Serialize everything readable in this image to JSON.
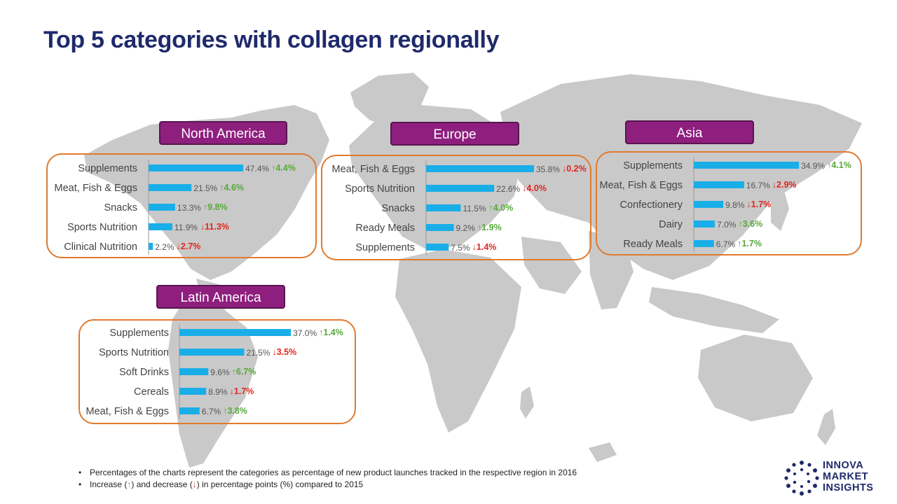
{
  "title": "Top 5 categories with collagen regionally",
  "colors": {
    "bar": "#1aaee8",
    "up": "#58a83c",
    "down": "#e0261f",
    "pill": "#8e1f7e",
    "panel_border": "#e07a2f",
    "title": "#1f2a6b",
    "map": "#c9c9c9"
  },
  "chart_data": [
    {
      "type": "bar",
      "orientation": "horizontal",
      "title": "North America",
      "xlim": [
        0,
        50
      ],
      "categories": [
        "Supplements",
        "Meat, Fish & Eggs",
        "Snacks",
        "Sports Nutrition",
        "Clinical Nutrition"
      ],
      "values": [
        47.4,
        21.5,
        13.3,
        11.9,
        2.2
      ],
      "value_labels": [
        "47.4%",
        "21.5%",
        "13.3%",
        "11.9%",
        "2.2%"
      ],
      "changes": [
        {
          "direction": "up",
          "arrow": "↑",
          "label": "4.4%"
        },
        {
          "direction": "up",
          "arrow": "↑",
          "label": "4.6%"
        },
        {
          "direction": "up",
          "arrow": "↑",
          "label": "9.8%"
        },
        {
          "direction": "down",
          "arrow": "↓",
          "label": "11.3%"
        },
        {
          "direction": "down",
          "arrow": "↓",
          "label": "2.7%"
        }
      ]
    },
    {
      "type": "bar",
      "orientation": "horizontal",
      "title": "Europe",
      "xlim": [
        0,
        50
      ],
      "categories": [
        "Meat, Fish & Eggs",
        "Sports Nutrition",
        "Snacks",
        "Ready Meals",
        "Supplements"
      ],
      "values": [
        35.8,
        22.6,
        11.5,
        9.2,
        7.5
      ],
      "value_labels": [
        "35.8%",
        "22.6%",
        "11.5%",
        "9.2%",
        "7.5%"
      ],
      "changes": [
        {
          "direction": "down",
          "arrow": "↓",
          "label": "0.2%"
        },
        {
          "direction": "down",
          "arrow": "↓",
          "label": "4.0%"
        },
        {
          "direction": "up",
          "arrow": "↑",
          "label": "4.0%"
        },
        {
          "direction": "up",
          "arrow": "↑",
          "label": "1.9%"
        },
        {
          "direction": "down",
          "arrow": "↓",
          "label": "1.4%"
        }
      ]
    },
    {
      "type": "bar",
      "orientation": "horizontal",
      "title": "Asia",
      "xlim": [
        0,
        50
      ],
      "categories": [
        "Supplements",
        "Meat, Fish & Eggs",
        "Confectionery",
        "Dairy",
        "Ready Meals"
      ],
      "values": [
        34.9,
        16.7,
        9.8,
        7.0,
        6.7
      ],
      "value_labels": [
        "34.9%",
        "16.7%",
        "9.8%",
        "7.0%",
        "6.7%"
      ],
      "changes": [
        {
          "direction": "up",
          "arrow": "↑",
          "label": "4.1%"
        },
        {
          "direction": "down",
          "arrow": "↓",
          "label": "2.9%"
        },
        {
          "direction": "down",
          "arrow": "↓",
          "label": "1.7%"
        },
        {
          "direction": "up",
          "arrow": "↑",
          "label": "3.6%"
        },
        {
          "direction": "up",
          "arrow": "↑",
          "label": "1.7%"
        }
      ]
    },
    {
      "type": "bar",
      "orientation": "horizontal",
      "title": "Latin America",
      "xlim": [
        0,
        50
      ],
      "categories": [
        "Supplements",
        "Sports Nutrition",
        "Soft Drinks",
        "Cereals",
        "Meat, Fish & Eggs"
      ],
      "values": [
        37.0,
        21.5,
        9.6,
        8.9,
        6.7
      ],
      "value_labels": [
        "37.0%",
        "21.5%",
        "9.6%",
        "8.9%",
        "6.7%"
      ],
      "changes": [
        {
          "direction": "up",
          "arrow": "↑",
          "label": "1.4%"
        },
        {
          "direction": "down",
          "arrow": "↓",
          "label": "3.5%"
        },
        {
          "direction": "up",
          "arrow": "↑",
          "label": "6.7%"
        },
        {
          "direction": "down",
          "arrow": "↓",
          "label": "1.7%"
        },
        {
          "direction": "up",
          "arrow": "↑",
          "label": "3.8%"
        }
      ]
    }
  ],
  "footnotes": {
    "line1": "Percentages of the charts represent the categories as percentage of new product launches tracked in the respective region in 2016",
    "line2_pre": "Increase (",
    "up_symbol": "↑",
    "line2_mid": ") and decrease (",
    "down_symbol": "↓",
    "line2_post": ") in percentage points (%)  compared to 2015"
  },
  "logo": {
    "line1": "INNOVA",
    "line2": "MARKET",
    "line3": "INSIGHTS"
  }
}
